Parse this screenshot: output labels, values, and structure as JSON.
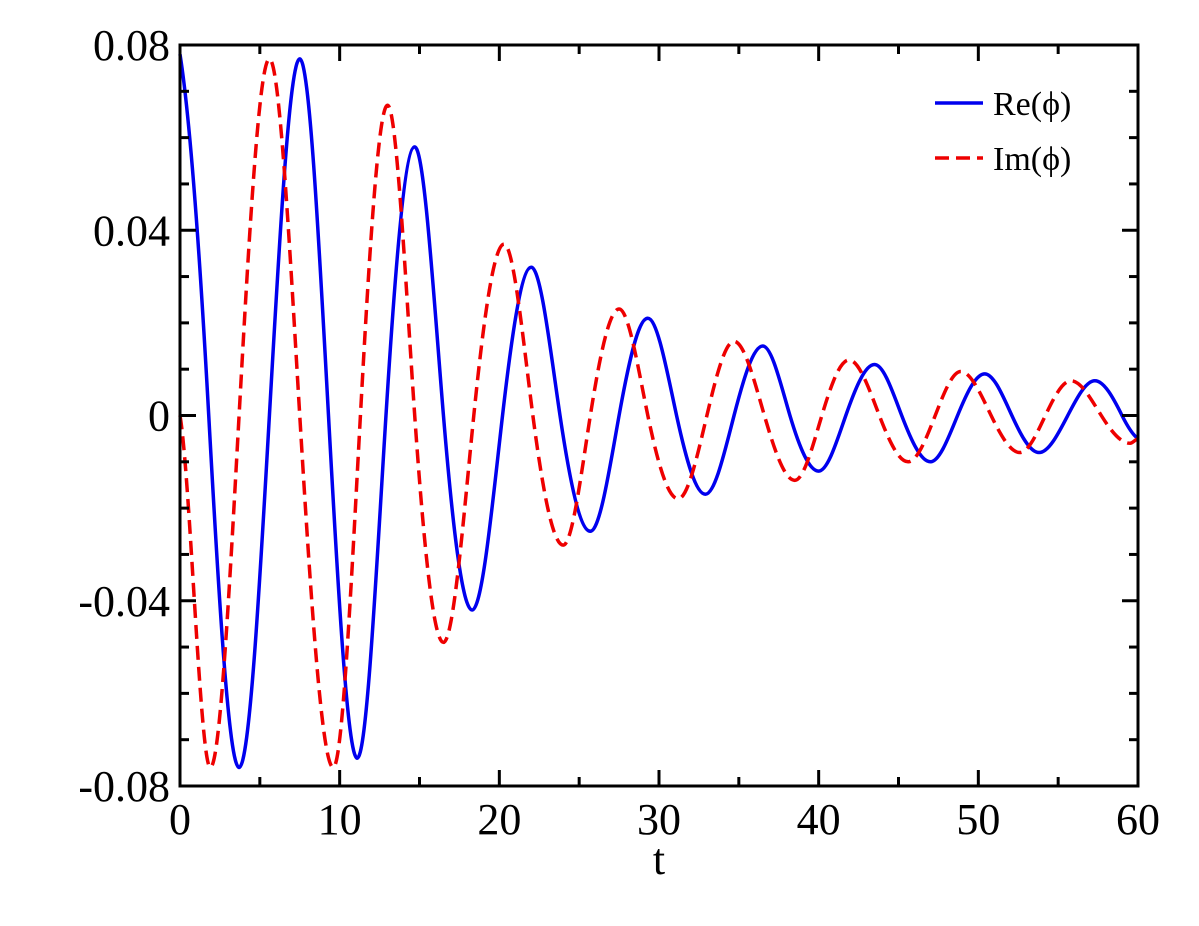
{
  "chart_data": {
    "type": "line",
    "title": "",
    "xlabel": "t",
    "ylabel": "",
    "xlim": [
      0,
      60
    ],
    "ylim": [
      -0.08,
      0.08
    ],
    "grid": false,
    "legend_position": "top-right",
    "x_ticks": [
      0,
      10,
      20,
      30,
      40,
      50,
      60
    ],
    "x_tick_labels": [
      "0",
      "10",
      "20",
      "30",
      "40",
      "50",
      "60"
    ],
    "y_ticks": [
      -0.08,
      -0.04,
      0,
      0.04,
      0.08
    ],
    "y_tick_labels": [
      "-0.08",
      "-0.04",
      "0",
      "0.04",
      "0.08"
    ],
    "series": [
      {
        "name": "Re(ϕ)",
        "color": "#0000ee",
        "dash": "solid",
        "x": [
          0.0,
          1.8,
          3.7,
          5.6,
          7.5,
          9.3,
          11.1,
          12.9,
          14.7,
          16.5,
          18.3,
          20.2,
          22.0,
          23.8,
          25.7,
          27.5,
          29.3,
          31.1,
          32.9,
          34.7,
          36.5,
          38.2,
          40.0,
          41.7,
          43.5,
          45.2,
          47.0,
          48.7,
          50.4,
          52.1,
          53.8,
          55.6,
          57.3,
          59.0,
          60.0
        ],
        "y": [
          0.078,
          0.0,
          -0.076,
          0.0,
          0.077,
          0.0,
          -0.074,
          0.0,
          0.058,
          0.0,
          -0.042,
          0.0,
          0.032,
          0.0,
          -0.025,
          0.0,
          0.021,
          0.0,
          -0.017,
          0.0,
          0.015,
          0.0,
          -0.012,
          0.0,
          0.011,
          0.0,
          -0.01,
          0.0,
          0.009,
          0.0,
          -0.008,
          0.0,
          0.0075,
          0.0,
          -0.005
        ]
      },
      {
        "name": "Im(ϕ)",
        "color": "#ee0000",
        "dash": "dashed",
        "x": [
          0.0,
          1.9,
          3.7,
          5.6,
          7.5,
          9.6,
          11.3,
          13.0,
          14.7,
          16.5,
          18.4,
          20.3,
          22.1,
          24.0,
          25.7,
          27.5,
          29.3,
          31.2,
          33.0,
          34.7,
          36.6,
          38.5,
          40.2,
          41.9,
          43.8,
          45.6,
          47.3,
          48.9,
          50.8,
          52.6,
          54.2,
          55.8,
          57.7,
          59.5,
          60.0
        ],
        "y": [
          0.0,
          -0.076,
          0.0,
          0.077,
          0.0,
          -0.076,
          0.0,
          0.067,
          0.0,
          -0.049,
          0.0,
          0.037,
          0.0,
          -0.028,
          0.0,
          0.023,
          0.0,
          -0.018,
          0.0,
          0.016,
          0.0,
          -0.014,
          0.0,
          0.012,
          0.0,
          -0.01,
          0.0,
          0.0095,
          0.0,
          -0.008,
          0.0,
          0.0075,
          0.0,
          -0.006,
          -0.005
        ]
      }
    ]
  }
}
